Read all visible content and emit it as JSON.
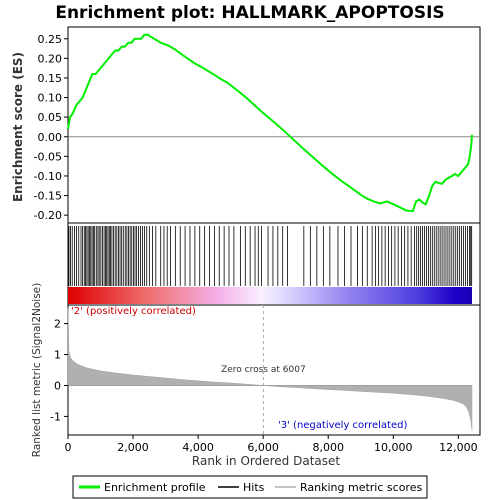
{
  "chart_data": {
    "type": "line",
    "title": "Enrichment plot: HALLMARK_APOPTOSIS",
    "panels": {
      "enrichment": {
        "ylabel": "Enrichment score (ES)",
        "ylim": [
          -0.22,
          0.28
        ],
        "yticks": [
          -0.2,
          -0.15,
          -0.1,
          -0.05,
          0.0,
          0.05,
          0.1,
          0.15,
          0.2,
          0.25
        ],
        "ytick_labels": [
          "-0.20",
          "-0.15",
          "-0.10",
          "-0.05",
          "0.00",
          "0.05",
          "0.10",
          "0.15",
          "0.20",
          "0.25"
        ],
        "series": [
          {
            "name": "Enrichment profile",
            "color": "#00ee00",
            "x": [
              0,
              60,
              150,
              250,
              350,
              450,
              550,
              650,
              750,
              850,
              950,
              1050,
              1150,
              1250,
              1350,
              1450,
              1550,
              1650,
              1750,
              1850,
              1950,
              2050,
              2150,
              2250,
              2350,
              2450,
              2550,
              2650,
              2750,
              2850,
              2950,
              3100,
              3300,
              3500,
              3700,
              3900,
              4100,
              4300,
              4500,
              4700,
              4900,
              5100,
              5300,
              5500,
              5700,
              5900,
              6007,
              6300,
              6600,
              6900,
              7200,
              7500,
              7800,
              8100,
              8400,
              8700,
              9000,
              9200,
              9400,
              9600,
              9800,
              10000,
              10200,
              10400,
              10600,
              10700,
              10800,
              10900,
              11000,
              11100,
              11200,
              11300,
              11400,
              11500,
              11600,
              11700,
              11800,
              11900,
              12000,
              12100,
              12200,
              12300,
              12350,
              12400,
              12420
            ],
            "y": [
              0.02,
              0.05,
              0.06,
              0.08,
              0.09,
              0.1,
              0.12,
              0.14,
              0.16,
              0.16,
              0.17,
              0.18,
              0.19,
              0.2,
              0.21,
              0.22,
              0.22,
              0.23,
              0.23,
              0.24,
              0.24,
              0.25,
              0.25,
              0.25,
              0.26,
              0.26,
              0.255,
              0.25,
              0.245,
              0.24,
              0.237,
              0.232,
              0.222,
              0.21,
              0.198,
              0.187,
              0.178,
              0.168,
              0.158,
              0.147,
              0.138,
              0.125,
              0.112,
              0.098,
              0.083,
              0.068,
              0.06,
              0.04,
              0.018,
              -0.005,
              -0.028,
              -0.05,
              -0.072,
              -0.093,
              -0.112,
              -0.13,
              -0.148,
              -0.158,
              -0.165,
              -0.17,
              -0.165,
              -0.172,
              -0.18,
              -0.188,
              -0.19,
              -0.165,
              -0.16,
              -0.168,
              -0.172,
              -0.15,
              -0.125,
              -0.115,
              -0.118,
              -0.12,
              -0.11,
              -0.105,
              -0.1,
              -0.095,
              -0.1,
              -0.09,
              -0.08,
              -0.07,
              -0.05,
              -0.02,
              0.005
            ]
          }
        ],
        "zero_line": 0.0
      },
      "hits": {
        "label": "Hits",
        "color": "#000000",
        "positions": [
          30,
          80,
          130,
          200,
          260,
          330,
          400,
          450,
          500,
          540,
          580,
          620,
          660,
          700,
          740,
          780,
          820,
          870,
          920,
          960,
          1010,
          1060,
          1110,
          1150,
          1190,
          1230,
          1270,
          1310,
          1350,
          1400,
          1450,
          1500,
          1550,
          1600,
          1650,
          1700,
          1760,
          1810,
          1860,
          1910,
          1960,
          2010,
          2060,
          2110,
          2170,
          2230,
          2290,
          2350,
          2420,
          2500,
          2600,
          2700,
          2850,
          2950,
          3050,
          3150,
          3300,
          3450,
          3600,
          3750,
          3900,
          4050,
          4200,
          4350,
          4500,
          4650,
          4800,
          4950,
          5100,
          5300,
          5450,
          5600,
          5750,
          5850,
          5950,
          6150,
          6300,
          6450,
          6600,
          6750,
          7250,
          7450,
          7650,
          7850,
          8050,
          8300,
          8500,
          8700,
          8900,
          9050,
          9200,
          9350,
          9450,
          9550,
          9650,
          9750,
          9850,
          9950,
          10050,
          10150,
          10250,
          10350,
          10450,
          10550,
          10650,
          10720,
          10780,
          10840,
          10900,
          10960,
          11020,
          11080,
          11140,
          11200,
          11260,
          11320,
          11380,
          11440,
          11500,
          11560,
          11620,
          11680,
          11740,
          11800,
          11860,
          11920,
          11980,
          12040,
          12100,
          12160,
          12220,
          12280,
          12340,
          12380,
          12410
        ]
      },
      "metric": {
        "ylabel": "Ranked list metric (Signal2Noise)",
        "xlabel": "Rank in Ordered Dataset",
        "xlim": [
          0,
          12420
        ],
        "ylim": [
          -1.6,
          2.6
        ],
        "yticks": [
          -1,
          0,
          1,
          2
        ],
        "ytick_labels": [
          "-1",
          "0",
          "1",
          "2"
        ],
        "xticks": [
          0,
          2000,
          4000,
          6000,
          8000,
          10000,
          12000
        ],
        "xtick_labels": [
          "0",
          "2,000",
          "4,000",
          "6,000",
          "8,000",
          "10,000",
          "12,000"
        ],
        "x": [
          0,
          30,
          80,
          150,
          300,
          600,
          1000,
          1500,
          2000,
          2500,
          3000,
          3500,
          4000,
          4500,
          5000,
          5500,
          6007,
          6500,
          7000,
          7500,
          8000,
          8500,
          9000,
          9500,
          10000,
          10500,
          11000,
          11500,
          11800,
          12000,
          12150,
          12250,
          12320,
          12380,
          12420
        ],
        "values": [
          2.5,
          1.1,
          0.9,
          0.8,
          0.68,
          0.56,
          0.47,
          0.4,
          0.34,
          0.29,
          0.24,
          0.19,
          0.15,
          0.11,
          0.08,
          0.04,
          0.0,
          -0.04,
          -0.07,
          -0.1,
          -0.13,
          -0.16,
          -0.19,
          -0.22,
          -0.25,
          -0.29,
          -0.34,
          -0.41,
          -0.47,
          -0.53,
          -0.6,
          -0.7,
          -0.85,
          -1.1,
          -1.45
        ],
        "fill_color": "#b0b0b0",
        "zero_cross_label": "Zero cross at 6007",
        "zero_cross_x": 6007,
        "pos_label": "'2' (positively correlated)",
        "neg_label": "'3' (negatively correlated)",
        "pos_label_color": "#cc0000",
        "neg_label_color": "#0000cc"
      }
    },
    "legend": {
      "placement": "bottom",
      "entries": [
        {
          "label": "Enrichment profile",
          "color": "#00ee00",
          "style": "line"
        },
        {
          "label": "Hits",
          "color": "#000000",
          "style": "line"
        },
        {
          "label": "Ranking metric scores",
          "color": "#b0b0b0",
          "style": "line"
        }
      ]
    },
    "colors": {
      "profile": "#00ee00",
      "hits": "#000000",
      "metric": "#b0b0b0",
      "positive": "#ff0000",
      "neutral": "#ffffff",
      "negative": "#0000ff"
    }
  }
}
